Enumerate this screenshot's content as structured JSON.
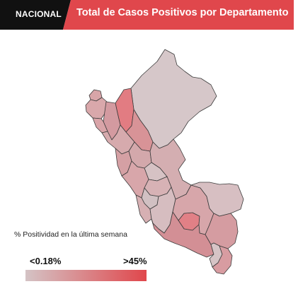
{
  "header": {
    "badge": "NACIONAL",
    "title": "Total de Casos Positivos por Departamento"
  },
  "legend": {
    "caption": "% Positividad en la última semana",
    "min_label": "<0.18%",
    "max_label": ">45%",
    "color_low": "#d4c3c5",
    "color_high": "#e0474c"
  },
  "colors": {
    "brand_red": "#e0474c",
    "badge_black": "#111111",
    "border": "#3b3b3b"
  }
}
